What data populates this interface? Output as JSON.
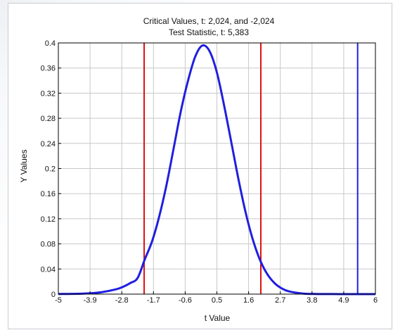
{
  "chart_data": {
    "type": "line",
    "title": "Critical Values, t: 2,024, and -2,024",
    "subtitle": "Test Statistic, t: 5,383",
    "xlabel": "t Value",
    "ylabel": "Y Values",
    "xlim": [
      -5,
      6
    ],
    "ylim": [
      0,
      0.4
    ],
    "grid": true,
    "x_ticks": [
      -5,
      -3.9,
      -2.8,
      -1.7,
      -0.6,
      0.5,
      1.6,
      2.7,
      3.8,
      4.9,
      6
    ],
    "x_tick_labels": [
      "-5",
      "-3.9",
      "-2.8",
      "-1.7",
      "-0.6",
      "0.5",
      "1.6",
      "2.7",
      "3.8",
      "4.9",
      "6"
    ],
    "y_ticks": [
      0,
      0.04,
      0.08,
      0.12,
      0.16,
      0.2,
      0.24,
      0.28,
      0.32,
      0.36,
      0.4
    ],
    "y_tick_labels": [
      "0",
      "0.04",
      "0.08",
      "0.12",
      "0.16",
      "0.2",
      "0.24",
      "0.28",
      "0.32",
      "0.36",
      "0.4"
    ],
    "series": [
      {
        "color": "#1f1fe0",
        "x": [
          -5,
          -4.5,
          -4,
          -3.5,
          -3,
          -2.75,
          -2.5,
          -2.25,
          -2,
          -1.75,
          -1.5,
          -1.25,
          -1,
          -0.75,
          -0.5,
          -0.25,
          0,
          0.25,
          0.5,
          0.75,
          1,
          1.25,
          1.5,
          1.75,
          2,
          2.25,
          2.5,
          2.75,
          3,
          3.5,
          4,
          4.5,
          5,
          5.5,
          6
        ],
        "y": [
          0.0002,
          0.0004,
          0.0011,
          0.0031,
          0.0076,
          0.0117,
          0.0177,
          0.0257,
          0.0555,
          0.0839,
          0.1238,
          0.1735,
          0.2322,
          0.2914,
          0.3402,
          0.3784,
          0.3959,
          0.3865,
          0.353,
          0.3005,
          0.2419,
          0.1826,
          0.1295,
          0.0863,
          0.0539,
          0.0317,
          0.0175,
          0.0091,
          0.0044,
          0.0009,
          0.0002,
          0.0001,
          0.0,
          0.0,
          0.0
        ]
      }
    ],
    "vertical_lines": [
      {
        "x": -2.024,
        "color": "#e01010"
      },
      {
        "x": 2.024,
        "color": "#e01010"
      },
      {
        "x": 5.383,
        "color": "#1f1fe0"
      }
    ]
  }
}
